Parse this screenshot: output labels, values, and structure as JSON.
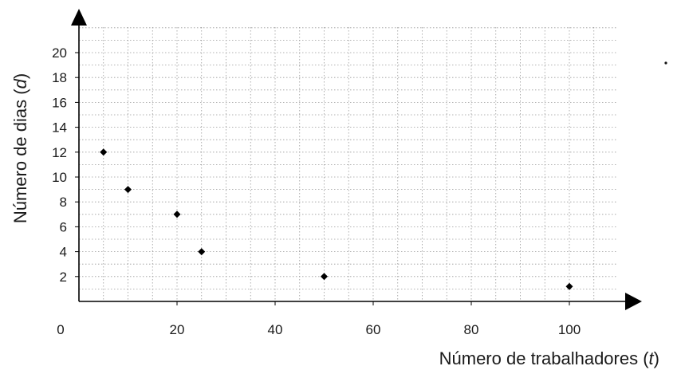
{
  "chart_data": {
    "type": "scatter",
    "xlabel_text": "Número de trabalhadores (",
    "xlabel_var": "t",
    "xlabel_close": ")",
    "ylabel_text": "Número de dias (",
    "ylabel_var": "d",
    "ylabel_close": ")",
    "xlim": [
      0,
      112
    ],
    "ylim": [
      0,
      22
    ],
    "x_ticks": [
      0,
      20,
      40,
      60,
      80,
      100
    ],
    "y_ticks": [
      2,
      4,
      6,
      8,
      10,
      12,
      14,
      16,
      18,
      20
    ],
    "grid": true,
    "marker": "diamond",
    "marker_color": "#000000",
    "grid_color": "#9a9a9a",
    "points": [
      {
        "x": 5,
        "y": 12
      },
      {
        "x": 10,
        "y": 9
      },
      {
        "x": 20,
        "y": 7
      },
      {
        "x": 25,
        "y": 4
      },
      {
        "x": 50,
        "y": 2
      },
      {
        "x": 100,
        "y": 1.2
      }
    ]
  }
}
